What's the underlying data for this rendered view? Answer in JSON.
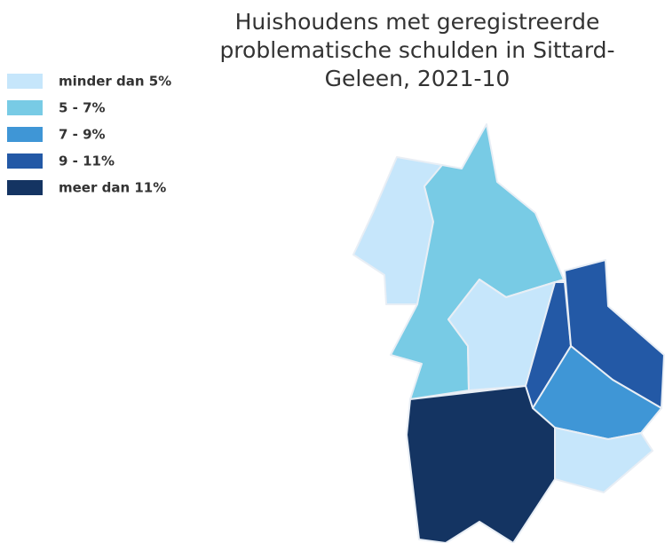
{
  "title_lines": [
    "Huishoudens met geregistreerde",
    "problematische schulden in Sittard-",
    "Geleen, 2021-10"
  ],
  "legend": [
    {
      "label": "minder dan 5%",
      "color": "#c6e6fb"
    },
    {
      "label": "5 - 7%",
      "color": "#78cbe5"
    },
    {
      "label": "7 - 9%",
      "color": "#3f96d6"
    },
    {
      "label": "9 - 11%",
      "color": "#2359a6"
    },
    {
      "label": "meer dan 11%",
      "color": "#143462"
    }
  ]
}
